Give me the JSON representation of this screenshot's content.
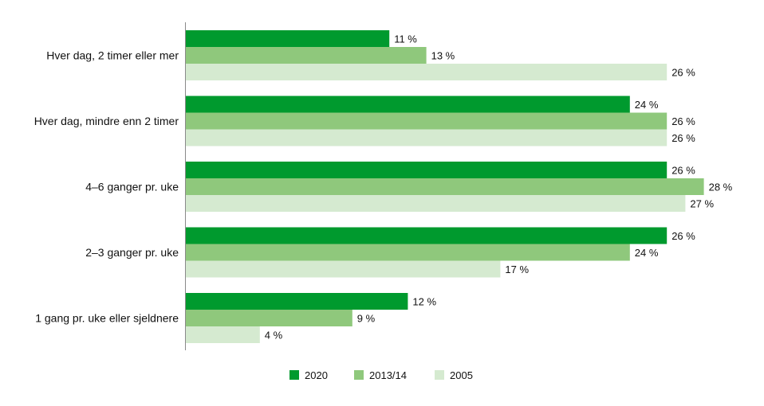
{
  "chart_data": {
    "type": "bar",
    "orientation": "horizontal",
    "categories": [
      "Hver dag, 2 timer eller mer",
      "Hver dag, mindre enn 2 timer",
      "4–6 ganger pr. uke",
      "2–3 ganger pr. uke",
      "1 gang pr. uke eller sjeldnere"
    ],
    "series": [
      {
        "name": "2020",
        "color": "#009a2e",
        "values": [
          11,
          24,
          26,
          26,
          12
        ],
        "labels": [
          "11 %",
          "24 %",
          "26 %",
          "26 %",
          "12 %"
        ]
      },
      {
        "name": "2013/14",
        "color": "#8fc87c",
        "values": [
          13,
          26,
          28,
          24,
          9
        ],
        "labels": [
          "13 %",
          "26 %",
          "28 %",
          "24 %",
          "9 %"
        ]
      },
      {
        "name": "2005",
        "color": "#d5ead0",
        "values": [
          26,
          26,
          27,
          17,
          4
        ],
        "labels": [
          "26 %",
          "26 %",
          "27 %",
          "17 %",
          "4 %"
        ]
      }
    ],
    "xlim": [
      0,
      28
    ],
    "legend_position": "bottom",
    "grid": false
  }
}
